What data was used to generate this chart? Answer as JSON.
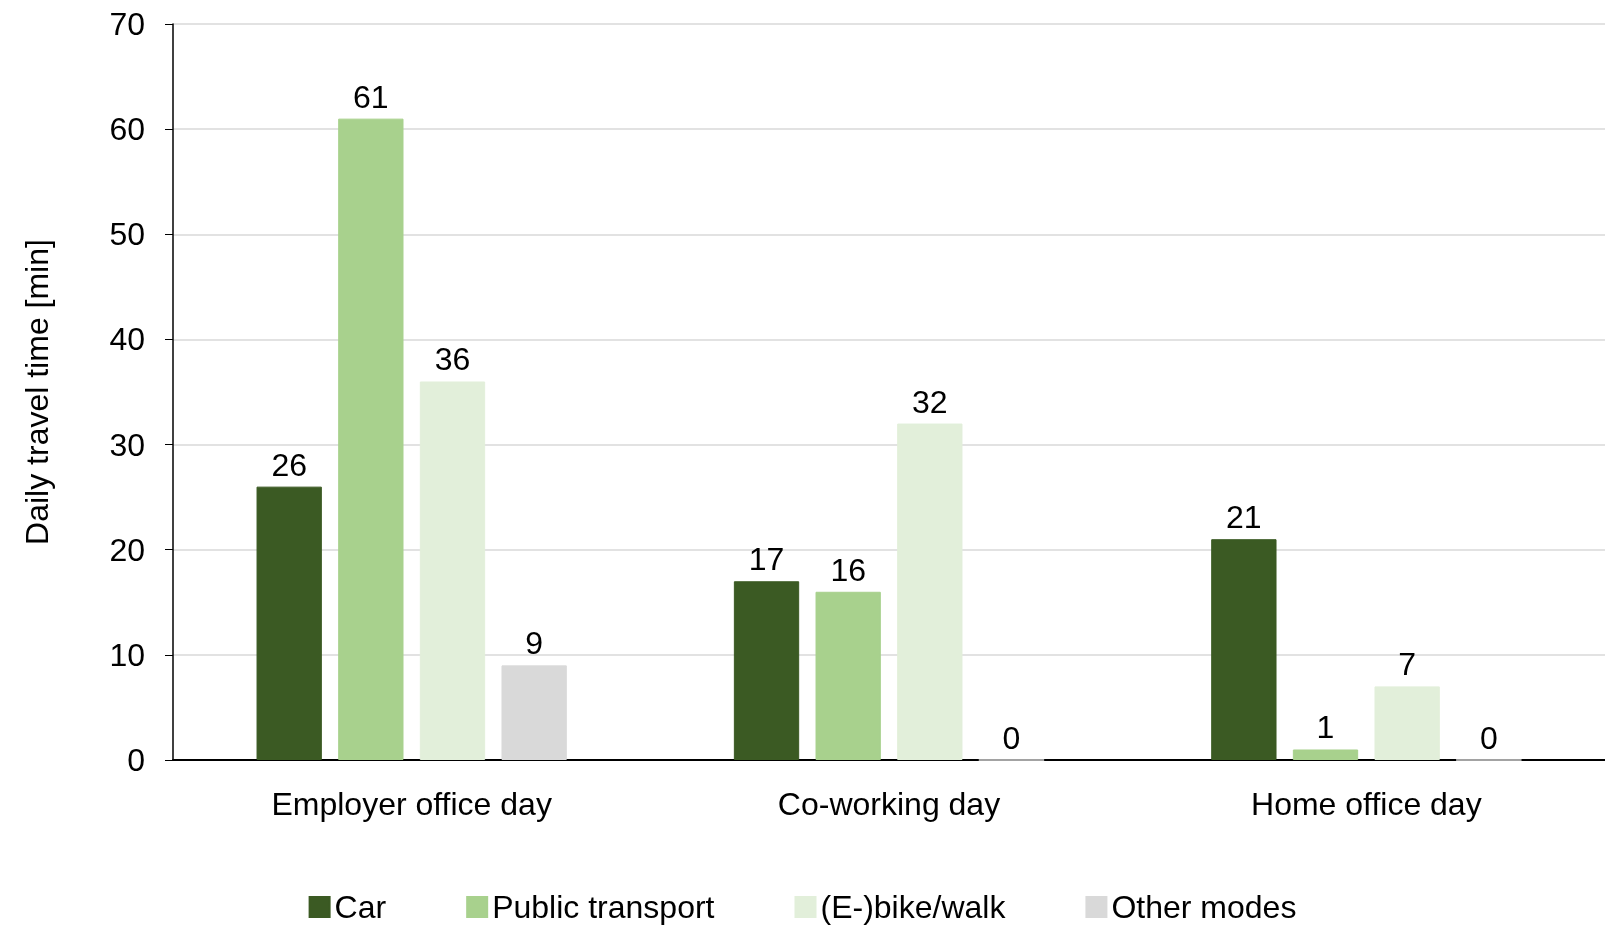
{
  "chart_data": {
    "type": "bar",
    "ylabel": "Daily travel time [min]",
    "categories": [
      "Employer office day",
      "Co-working day",
      "Home office day"
    ],
    "series": [
      {
        "name": "Car",
        "color": "#3b5a23",
        "values": [
          26,
          17,
          21
        ]
      },
      {
        "name": "Public transport",
        "color": "#a8d18d",
        "values": [
          61,
          16,
          1
        ]
      },
      {
        "name": "(E-)bike/walk",
        "color": "#e2efda",
        "values": [
          36,
          32,
          7
        ]
      },
      {
        "name": "Other modes",
        "color": "#d9d9d9",
        "values": [
          9,
          0,
          0
        ]
      }
    ],
    "ylim": [
      0,
      70
    ],
    "yticks": [
      0,
      10,
      20,
      30,
      40,
      50,
      60,
      70
    ],
    "grid": "y",
    "legend": "bottom",
    "data_labels": true
  }
}
